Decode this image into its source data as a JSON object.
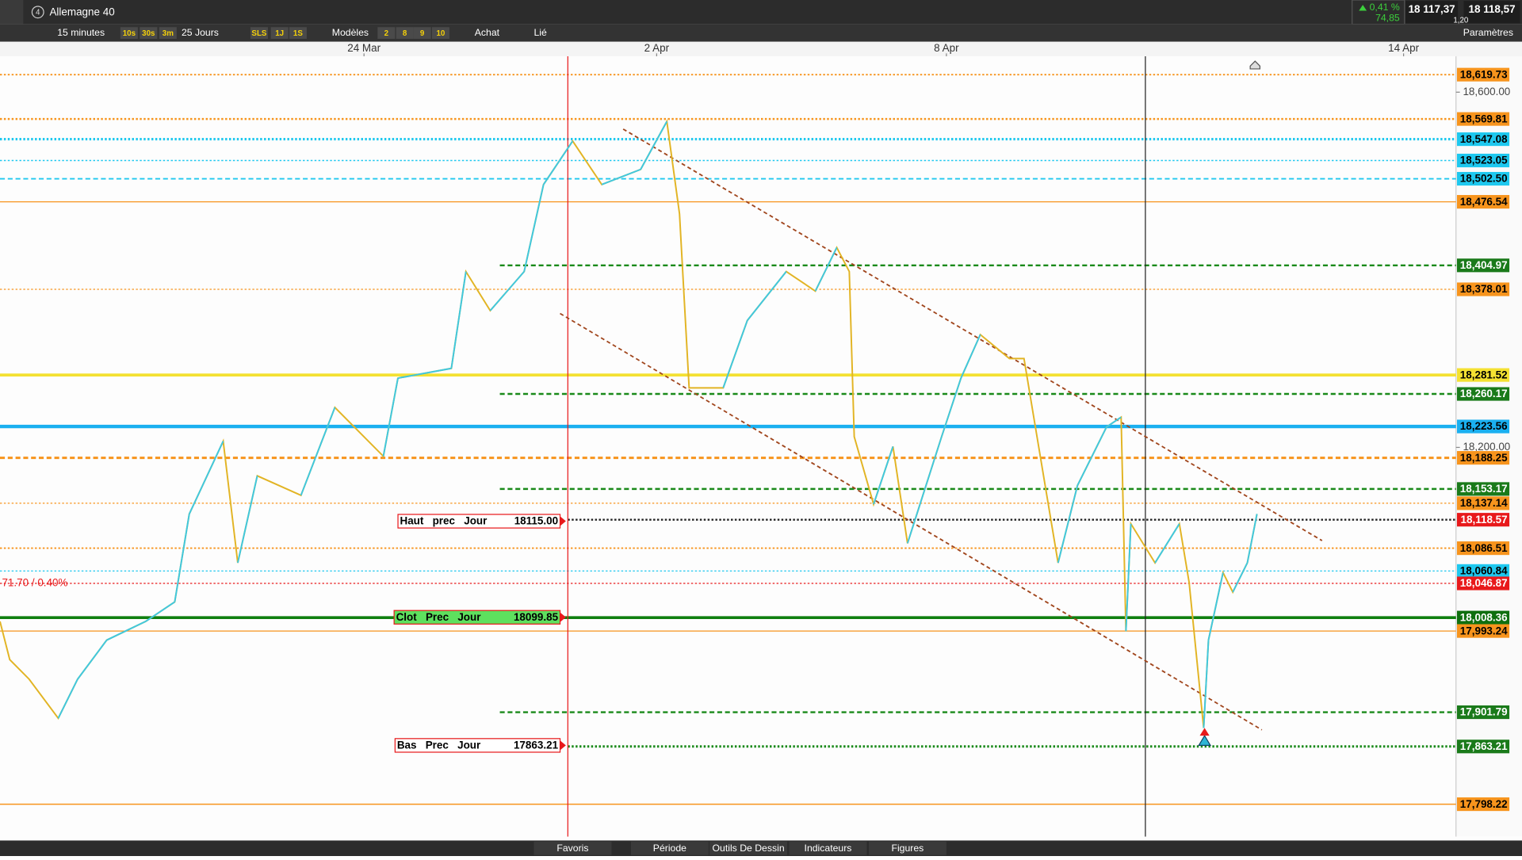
{
  "toolbar": {
    "badge": "4",
    "instrument": "Allemagne 40",
    "change_pct": "0,41 %",
    "change_pts": "74,85",
    "bid": "18 117,37",
    "ask": "18 118,57",
    "spread": "1,20"
  },
  "toolbar2": {
    "interval": "15 minutes",
    "quick_intervals": [
      "10s",
      "30s",
      "3m"
    ],
    "range": "25 Jours",
    "periods": [
      "SLS",
      "1J",
      "1S"
    ],
    "templates": "Modèles",
    "counts": [
      "2",
      "8",
      "9",
      "10"
    ],
    "buy": "Achat",
    "link": "Lié",
    "settings": "Paramètres"
  },
  "chart_data": {
    "type": "line",
    "xlim": [
      0,
      100
    ],
    "xticks": [
      {
        "value": 25,
        "label": "24 Mar"
      },
      {
        "value": 45.1,
        "label": "2 Apr"
      },
      {
        "value": 65,
        "label": "8 Apr"
      },
      {
        "value": 96.4,
        "label": "14 Apr"
      }
    ],
    "ylim": [
      17761.7,
      18640.4
    ],
    "yticks": [
      {
        "value": 18600,
        "label": "18,600.00"
      },
      {
        "value": 18200,
        "label": "18,200.00"
      }
    ],
    "series": [
      {
        "up_color": "#3fc8e0",
        "down_color": "#e2b424",
        "x": [
          0,
          0.67,
          2,
          4,
          5.33,
          7.33,
          10,
          12,
          13,
          15.33,
          16.33,
          17.67,
          20.67,
          23,
          26.33,
          27.33,
          31,
          32,
          33.67,
          36,
          37.33,
          39.33,
          41.33,
          44,
          45.8,
          46.67,
          47.33,
          49.67,
          51.33,
          54,
          56,
          57.47,
          58.33,
          58.67,
          60,
          61.33,
          62.33,
          64.67,
          66,
          67.33,
          69.33,
          70.33,
          71,
          72.67,
          74,
          76,
          77,
          77.33,
          77.67,
          79.33,
          81,
          81.67,
          82.67,
          83,
          84,
          84.67,
          85.67,
          86.33
        ],
        "values": [
          18004,
          17961,
          17939,
          17895,
          17939,
          17983,
          18004,
          18026,
          18125,
          18207,
          18070,
          18168,
          18146,
          18245,
          18190,
          18278,
          18289,
          18398,
          18354,
          18398,
          18496,
          18545,
          18496,
          18513,
          18567,
          18463,
          18267,
          18267,
          18343,
          18398,
          18376,
          18425,
          18398,
          18212,
          18136,
          18201,
          18092,
          18212,
          18278,
          18327,
          18300,
          18300,
          18234,
          18070,
          18157,
          18223,
          18234,
          17993,
          18114,
          18070,
          18114,
          18048,
          17884,
          17983,
          18059,
          18037,
          18070,
          18125
        ]
      }
    ],
    "levels": [
      {
        "value": 18619.73,
        "label": "18,619.73",
        "color": "#f7941d",
        "style": "dotted",
        "width": 1.5,
        "label_bg": "#f7941d",
        "label_fg": "#000000"
      },
      {
        "value": 18569.81,
        "label": "18,569.81",
        "color": "#f7941d",
        "style": "dotted",
        "width": 2,
        "label_bg": "#f7941d",
        "label_fg": "#000000"
      },
      {
        "value": 18547.08,
        "label": "18,547.08",
        "color": "#1ec8ef",
        "style": "dotted",
        "width": 2.5,
        "label_bg": "#1ec8ef",
        "label_fg": "#000000"
      },
      {
        "value": 18523.05,
        "label": "18,523.05",
        "color": "#1ec8ef",
        "style": "dotted",
        "width": 1.2,
        "label_bg": "#1ec8ef",
        "label_fg": "#000000"
      },
      {
        "value": 18502.5,
        "label": "18,502.50",
        "color": "#1ec8ef",
        "style": "dashed",
        "width": 1.5,
        "label_bg": "#1ec8ef",
        "label_fg": "#000000"
      },
      {
        "value": 18476.54,
        "label": "18,476.54",
        "color": "#f7941d",
        "style": "solid",
        "width": 1,
        "label_bg": "#f7941d",
        "label_fg": "#000000"
      },
      {
        "value": 18404.97,
        "label": "18,404.97",
        "color": "#1a8a1a",
        "style": "dashed",
        "width": 2,
        "label_bg": "#1a7a1a",
        "label_fg": "#ffffff",
        "x_start": 34.33
      },
      {
        "value": 18378.01,
        "label": "18,378.01",
        "color": "#f7941d",
        "style": "dotted",
        "width": 1,
        "label_bg": "#f7941d",
        "label_fg": "#000000"
      },
      {
        "value": 18281.52,
        "label": "18,281.52",
        "color": "#f4e132",
        "style": "solid",
        "width": 3,
        "label_bg": "#f4e132",
        "label_fg": "#000000"
      },
      {
        "value": 18260.17,
        "label": "18,260.17",
        "color": "#1a8a1a",
        "style": "dashed",
        "width": 2,
        "label_bg": "#1a7a1a",
        "label_fg": "#ffffff",
        "x_start": 34.33
      },
      {
        "value": 18223.56,
        "label": "18,223.56",
        "color": "#1ab0f0",
        "style": "solid",
        "width": 3.5,
        "label_bg": "#1ab0f0",
        "label_fg": "#000000"
      },
      {
        "value": 18188.25,
        "label": "18,188.25",
        "color": "#f7941d",
        "style": "dashed",
        "width": 2.5,
        "label_bg": "#f7941d",
        "label_fg": "#000000"
      },
      {
        "value": 18153.17,
        "label": "18,153.17",
        "color": "#1a8a1a",
        "style": "dashed",
        "width": 2,
        "label_bg": "#1a7a1a",
        "label_fg": "#ffffff",
        "x_start": 34.33
      },
      {
        "value": 18137.14,
        "label": "18,137.14",
        "color": "#f7941d",
        "style": "dotted",
        "width": 1,
        "label_bg": "#f7941d",
        "label_fg": "#000000"
      },
      {
        "value": 18118.57,
        "label": "18,118.57",
        "color": "#222222",
        "style": "dotted",
        "width": 2,
        "label_bg": "#e8191b",
        "label_fg": "#ffffff",
        "x_start": 39
      },
      {
        "value": 18086.51,
        "label": "18,086.51",
        "color": "#f7941d",
        "style": "dotted",
        "width": 1.5,
        "label_bg": "#f7941d",
        "label_fg": "#000000"
      },
      {
        "value": 18060.84,
        "label": "18,060.84",
        "color": "#1ec8ef",
        "style": "dotted",
        "width": 1,
        "label_bg": "#1ec8ef",
        "label_fg": "#000000"
      },
      {
        "value": 18046.87,
        "label": "18,046.87",
        "color": "#e8191b",
        "style": "dotted",
        "width": 1,
        "label_bg": "#e8191b",
        "label_fg": "#ffffff"
      },
      {
        "value": 18008.36,
        "label": "18,008.36",
        "color": "#0f7f0f",
        "style": "solid",
        "width": 3,
        "label_bg": "#0f6f0f",
        "label_fg": "#ffffff"
      },
      {
        "value": 17993.24,
        "label": "17,993.24",
        "color": "#f7941d",
        "style": "solid",
        "width": 1,
        "label_bg": "#f7941d",
        "label_fg": "#000000"
      },
      {
        "value": 17901.79,
        "label": "17,901.79",
        "color": "#1a8a1a",
        "style": "dashed",
        "width": 2,
        "label_bg": "#1a7a1a",
        "label_fg": "#ffffff",
        "x_start": 34.33
      },
      {
        "value": 17863.21,
        "label": "17,863.21",
        "color": "#1a8a1a",
        "style": "dotted",
        "width": 2.5,
        "label_bg": "#1a7a1a",
        "label_fg": "#ffffff",
        "x_start": 39
      },
      {
        "value": 17798.22,
        "label": "17,798.22",
        "color": "#f7941d",
        "style": "solid",
        "width": 1.2,
        "label_bg": "#f7941d",
        "label_fg": "#000000"
      }
    ],
    "day_boxes": [
      {
        "label": "Haut   prec   Jour",
        "value": 18115,
        "value_label": "18115.00",
        "border": "#e8191b",
        "bg": "#ffffff"
      },
      {
        "label": "Clot   Prec   Jour",
        "value": 18099.85,
        "value_label": "18099.85",
        "border": "#e8191b",
        "bg": "#5ee05e"
      },
      {
        "label": "Bas   Prec   Jour",
        "value": 17863.21,
        "value_label": "17863.21",
        "border": "#e8191b",
        "bg": "#ffffff"
      }
    ],
    "annotation": "71.70 / 0.40%"
  },
  "footer": {
    "tabs": [
      "Favoris",
      "Période",
      "Outils De Dessin",
      "Indicateurs",
      "Figures"
    ]
  }
}
